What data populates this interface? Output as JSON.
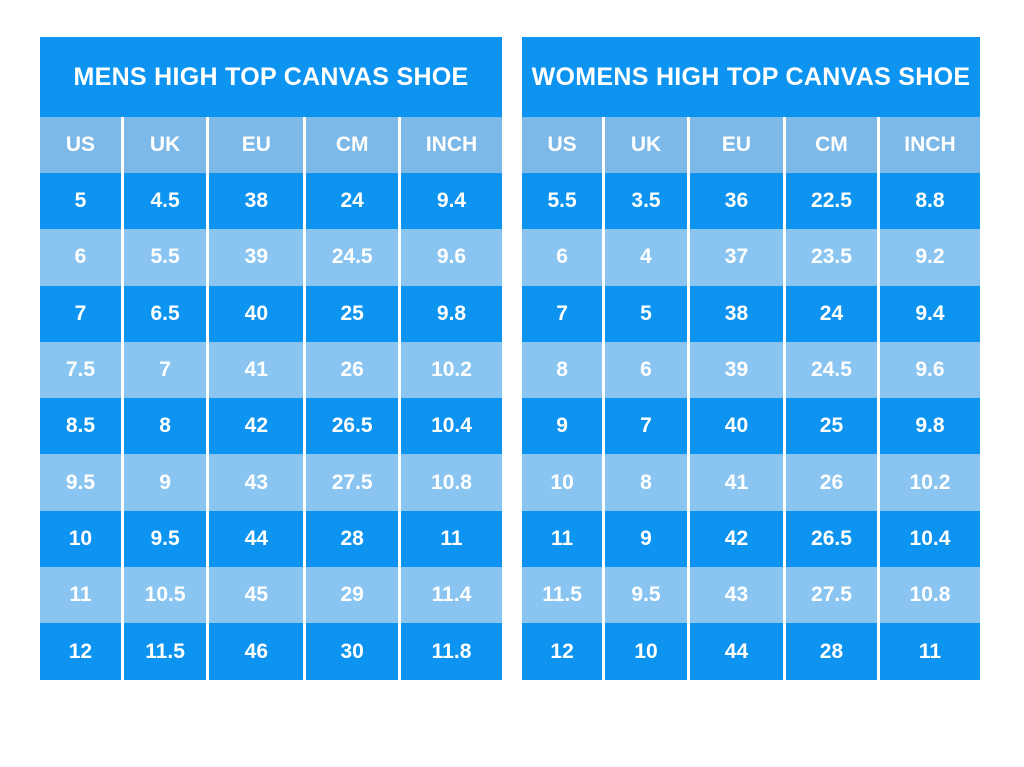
{
  "colors": {
    "dark_row": "#0d94f0",
    "light_row": "#8ac5f1",
    "header_row": "#7db9e8",
    "separator": "#ffffff",
    "text": "#ffffff",
    "page_background": "#ffffff"
  },
  "chart_data": [
    {
      "type": "table",
      "title": "MENS HIGH TOP CANVAS SHOE",
      "columns": [
        "US",
        "UK",
        "EU",
        "CM",
        "INCH"
      ],
      "rows": [
        [
          "5",
          "4.5",
          "38",
          "24",
          "9.4"
        ],
        [
          "6",
          "5.5",
          "39",
          "24.5",
          "9.6"
        ],
        [
          "7",
          "6.5",
          "40",
          "25",
          "9.8"
        ],
        [
          "7.5",
          "7",
          "41",
          "26",
          "10.2"
        ],
        [
          "8.5",
          "8",
          "42",
          "26.5",
          "10.4"
        ],
        [
          "9.5",
          "9",
          "43",
          "27.5",
          "10.8"
        ],
        [
          "10",
          "9.5",
          "44",
          "28",
          "11"
        ],
        [
          "11",
          "10.5",
          "45",
          "29",
          "11.4"
        ],
        [
          "12",
          "11.5",
          "46",
          "30",
          "11.8"
        ]
      ]
    },
    {
      "type": "table",
      "title": "WOMENS HIGH TOP CANVAS SHOE",
      "columns": [
        "US",
        "UK",
        "EU",
        "CM",
        "INCH"
      ],
      "rows": [
        [
          "5.5",
          "3.5",
          "36",
          "22.5",
          "8.8"
        ],
        [
          "6",
          "4",
          "37",
          "23.5",
          "9.2"
        ],
        [
          "7",
          "5",
          "38",
          "24",
          "9.4"
        ],
        [
          "8",
          "6",
          "39",
          "24.5",
          "9.6"
        ],
        [
          "9",
          "7",
          "40",
          "25",
          "9.8"
        ],
        [
          "10",
          "8",
          "41",
          "26",
          "10.2"
        ],
        [
          "11",
          "9",
          "42",
          "26.5",
          "10.4"
        ],
        [
          "11.5",
          "9.5",
          "43",
          "27.5",
          "10.8"
        ],
        [
          "12",
          "10",
          "44",
          "28",
          "11"
        ]
      ]
    }
  ]
}
